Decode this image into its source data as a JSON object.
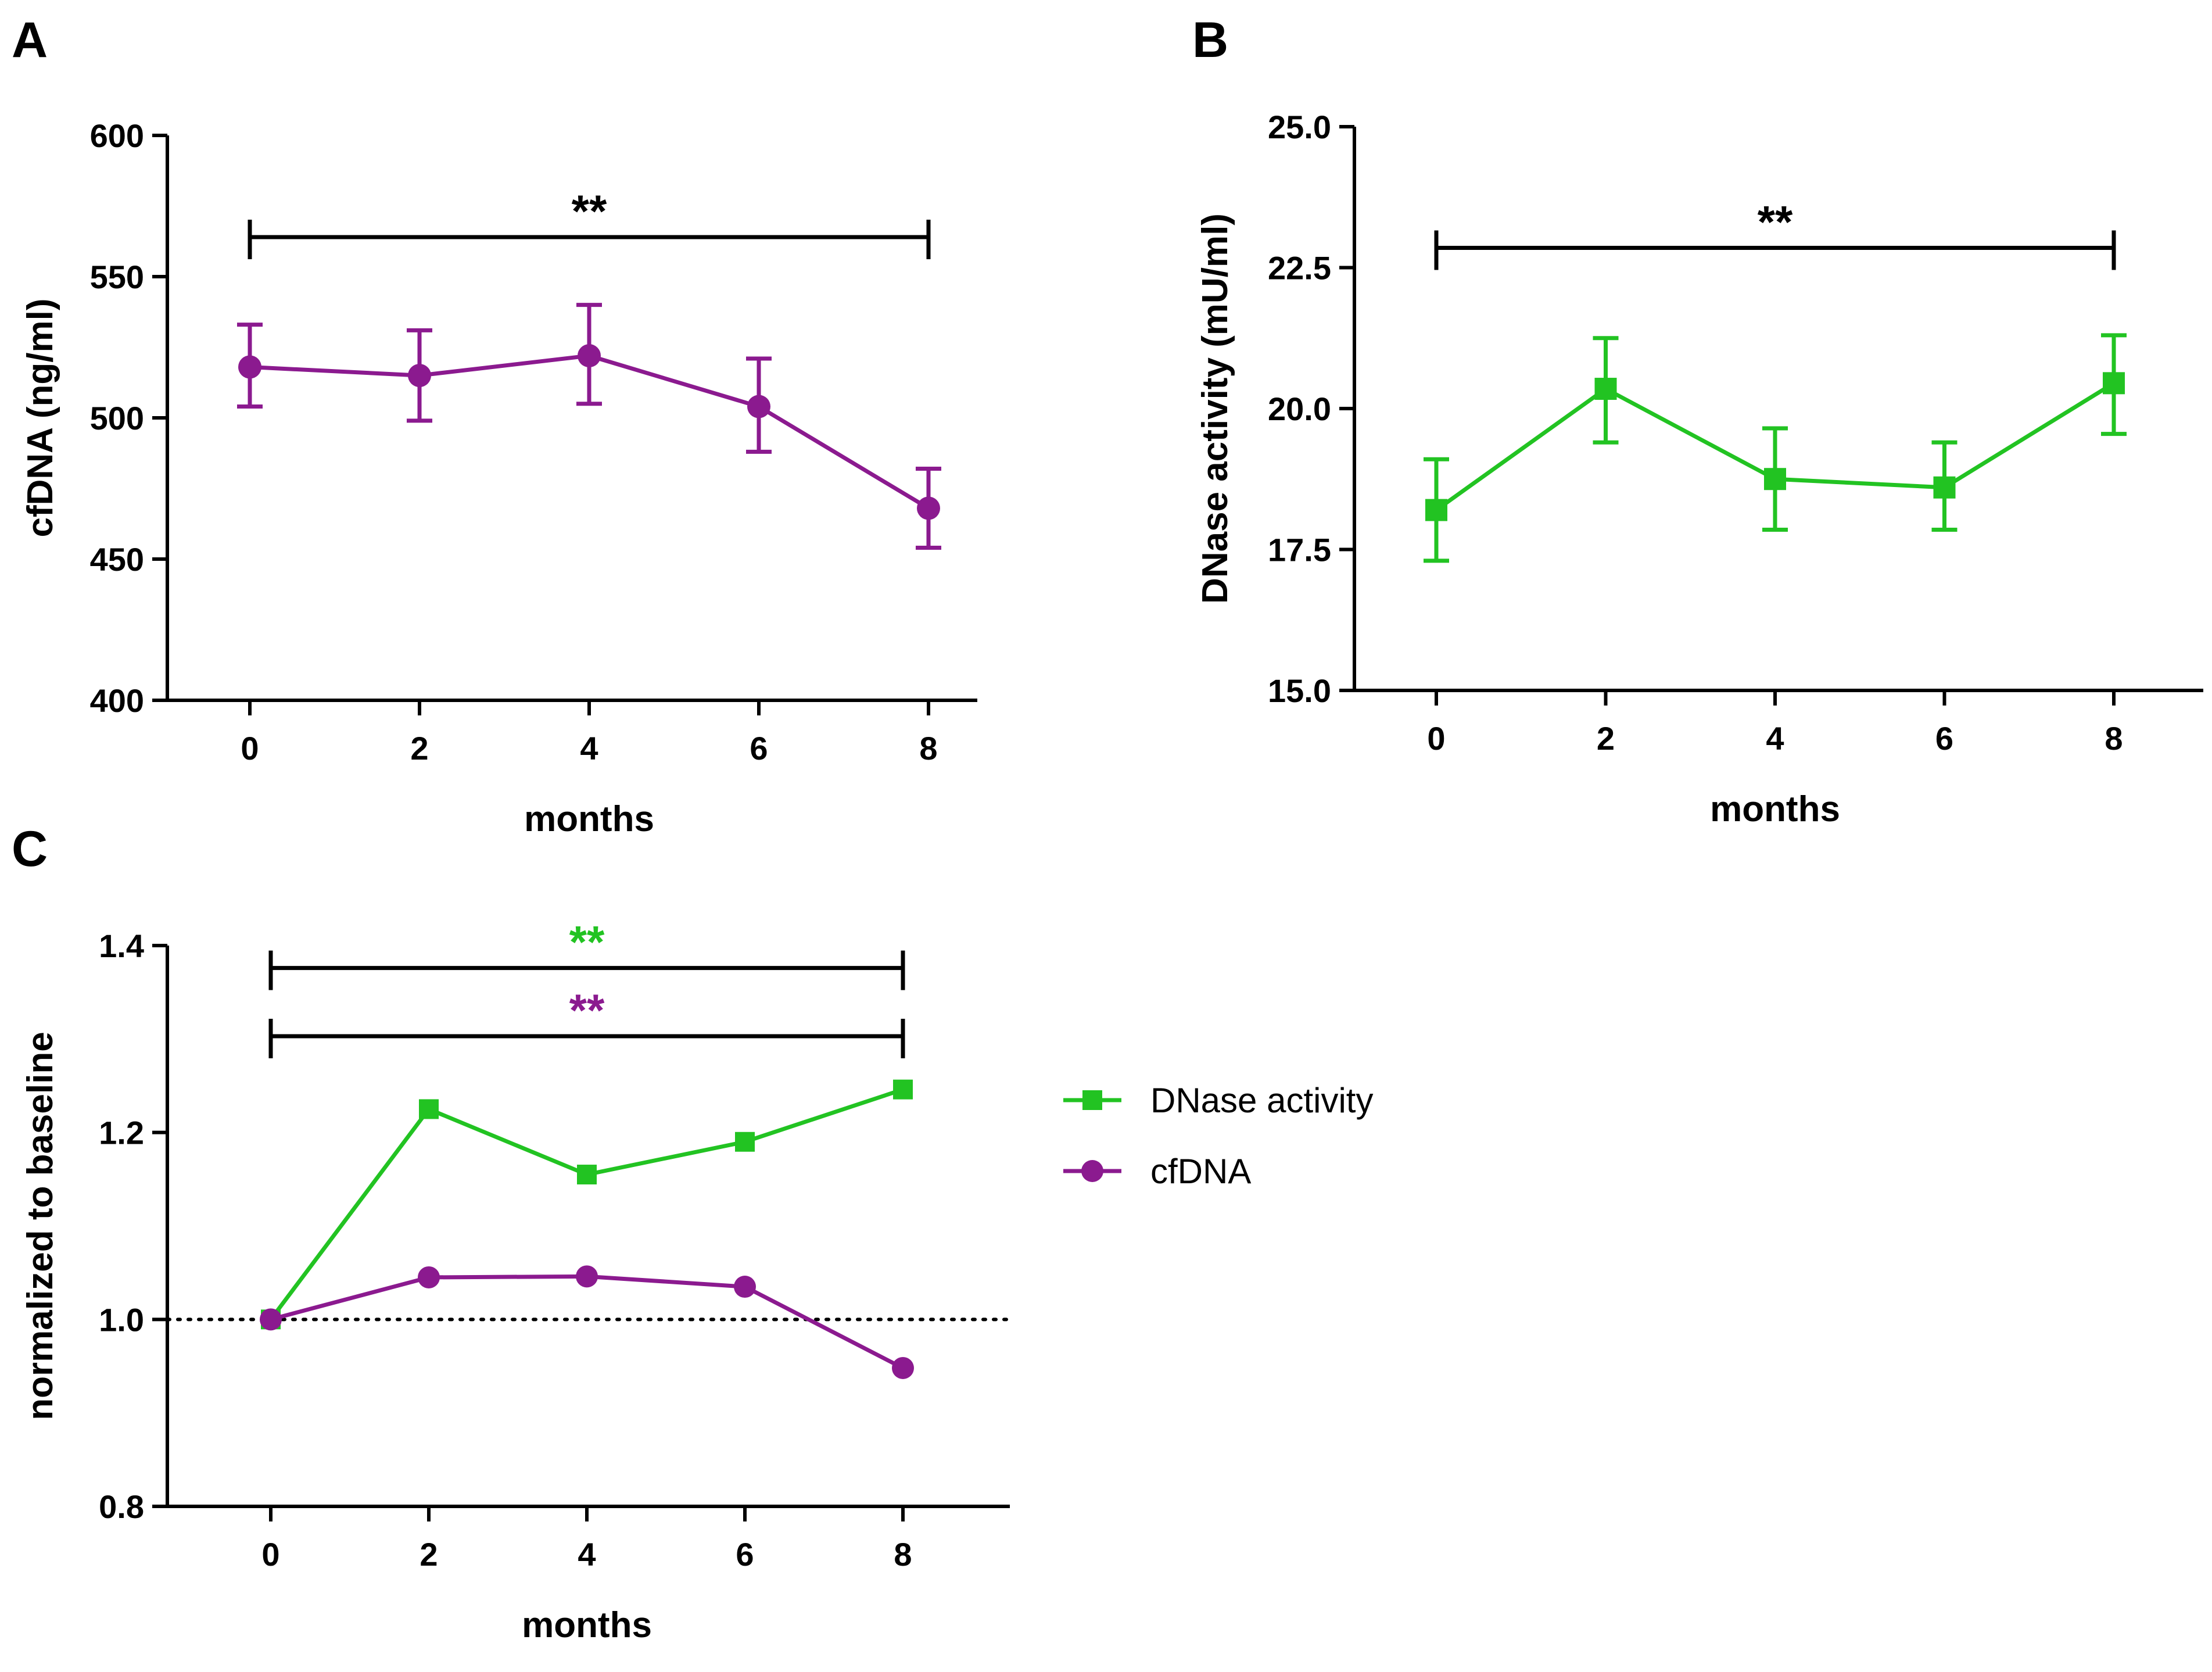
{
  "chart_data": [
    {
      "panel": "A",
      "type": "line",
      "color": "#8B1A8F",
      "marker": "circle",
      "x": [
        0,
        2,
        4,
        6,
        8
      ],
      "xticks": [
        "0",
        "2",
        "4",
        "6",
        "8"
      ],
      "xlabel": "months",
      "ylabel": "cfDNA (ng/ml)",
      "ylim": [
        400,
        600
      ],
      "yticks": [
        "400",
        "450",
        "500",
        "550",
        "600"
      ],
      "values": [
        518,
        515,
        522,
        504,
        468
      ],
      "err_low": [
        504,
        499,
        505,
        488,
        454
      ],
      "err_high": [
        533,
        531,
        540,
        521,
        482
      ],
      "significance": {
        "from": 0,
        "to": 8,
        "label": "**",
        "y": 564
      }
    },
    {
      "panel": "B",
      "type": "line",
      "color": "#22C322",
      "marker": "square",
      "x": [
        0,
        2,
        4,
        6,
        8
      ],
      "xticks": [
        "0",
        "2",
        "4",
        "6",
        "8"
      ],
      "xlabel": "months",
      "ylabel": "DNase activity (mU/ml)",
      "ylim": [
        15.0,
        25.0
      ],
      "yticks": [
        "15.0",
        "17.5",
        "20.0",
        "22.5",
        "25.0"
      ],
      "values": [
        18.2,
        20.35,
        18.75,
        18.6,
        20.45
      ],
      "err_low": [
        17.3,
        19.4,
        17.85,
        17.85,
        19.55
      ],
      "err_high": [
        19.1,
        21.25,
        19.65,
        19.4,
        21.3
      ],
      "significance": {
        "from": 0,
        "to": 8,
        "label": "**",
        "y": 22.85
      }
    },
    {
      "panel": "C",
      "type": "line",
      "x": [
        0,
        2,
        4,
        6,
        8
      ],
      "xticks": [
        "0",
        "2",
        "4",
        "6",
        "8"
      ],
      "xlabel": "months",
      "ylabel": "normalized to baseline",
      "ylim": [
        0.8,
        1.4
      ],
      "yticks": [
        "0.8",
        "1.0",
        "1.2",
        "1.4"
      ],
      "baseline": 1.0,
      "series": [
        {
          "name": "DNase activity",
          "color": "#22C322",
          "marker": "square",
          "values": [
            1.0,
            1.225,
            1.155,
            1.19,
            1.246
          ]
        },
        {
          "name": "cfDNA",
          "color": "#8B1A8F",
          "marker": "circle",
          "values": [
            1.0,
            1.045,
            1.046,
            1.035,
            0.948
          ]
        }
      ],
      "significance": [
        {
          "from": 0,
          "to": 8,
          "label": "**",
          "color": "#22C322",
          "y": 1.376
        },
        {
          "from": 0,
          "to": 8,
          "label": "**",
          "color": "#8B1A8F",
          "y": 1.303
        }
      ],
      "legend": "right"
    }
  ]
}
